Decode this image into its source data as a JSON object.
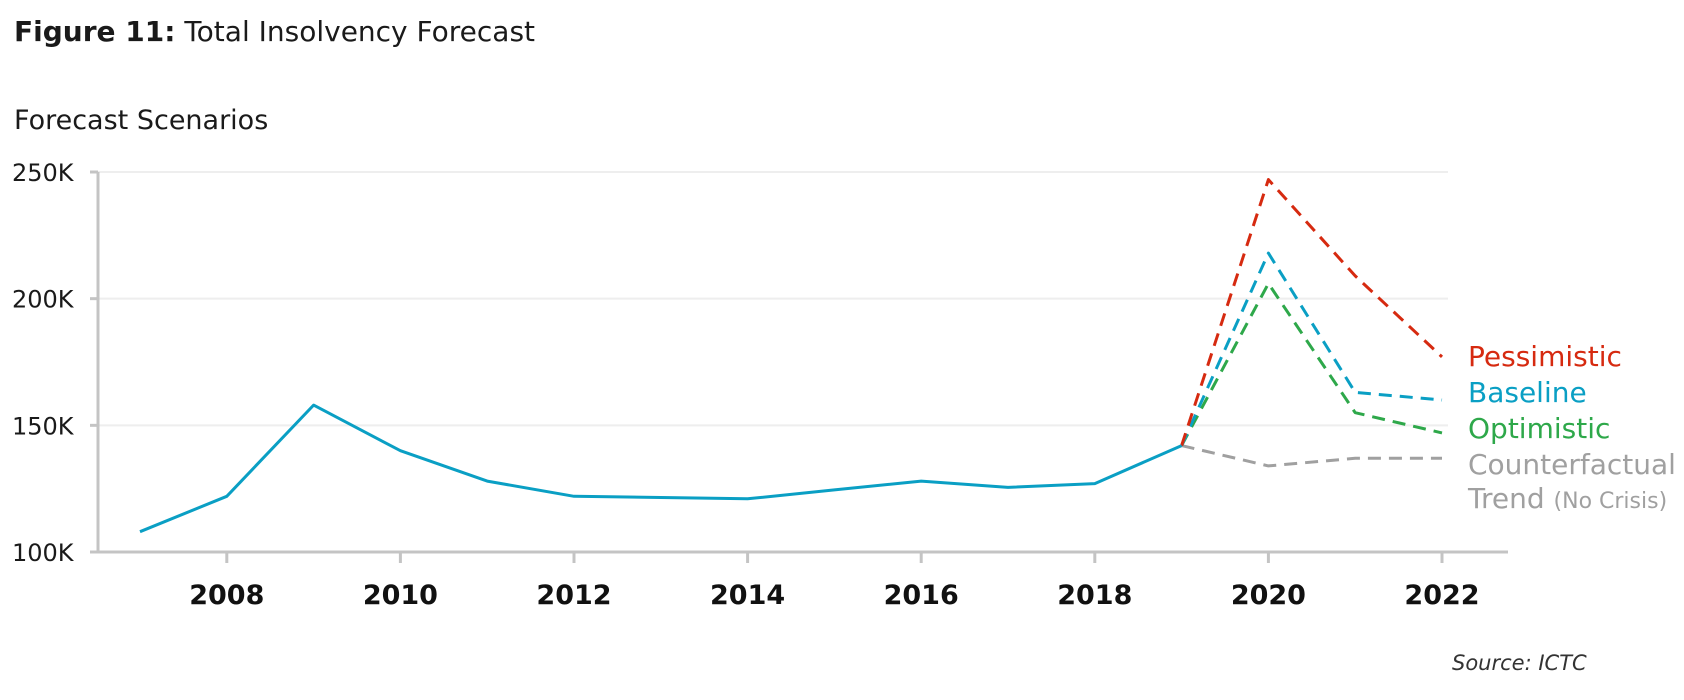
{
  "figure": {
    "label": "Figure 11:",
    "title": "Total Insolvency Forecast",
    "subtitle": "Forecast Scenarios",
    "source": "Source: ICTC"
  },
  "chart_data": {
    "type": "line",
    "title": "Total Insolvency Forecast",
    "subtitle": "Forecast Scenarios",
    "xlabel": "",
    "ylabel": "",
    "xlim": [
      2007,
      2022
    ],
    "ylim": [
      100000,
      250000
    ],
    "x_ticks": [
      2008,
      2010,
      2012,
      2014,
      2016,
      2018,
      2020,
      2022
    ],
    "x_tick_labels": [
      "2008",
      "2010",
      "2012",
      "2014",
      "2016",
      "2018",
      "2020",
      "2022"
    ],
    "y_ticks": [
      100000,
      150000,
      200000,
      250000
    ],
    "y_tick_labels": [
      "100K",
      "150K",
      "200K",
      "250K"
    ],
    "grid": "horizontal",
    "legend": "inline labels at right end of lines",
    "series": [
      {
        "name": "",
        "color": "#0a9fc4",
        "style": "solid",
        "x": [
          2007,
          2008,
          2009,
          2010,
          2011,
          2012,
          2013,
          2014,
          2015,
          2016,
          2017,
          2018,
          2019
        ],
        "y": [
          108000,
          122000,
          158000,
          140000,
          128000,
          122000,
          121500,
          121000,
          124500,
          128000,
          125500,
          127000,
          142000
        ]
      },
      {
        "name": "Pessimistic",
        "color": "#d62a10",
        "style": "dashed",
        "x": [
          2019,
          2020,
          2021,
          2022
        ],
        "y": [
          142000,
          247000,
          209000,
          177000
        ]
      },
      {
        "name": "Baseline",
        "color": "#0a9fc4",
        "style": "dashed",
        "x": [
          2019,
          2020,
          2021,
          2022
        ],
        "y": [
          142000,
          218000,
          163000,
          160000
        ]
      },
      {
        "name": "Optimistic",
        "color": "#2ea84a",
        "style": "dashed",
        "x": [
          2019,
          2020,
          2021,
          2022
        ],
        "y": [
          142000,
          206000,
          155000,
          147000
        ]
      },
      {
        "name": "Counterfactual Trend",
        "name_note": "(No Crisis)",
        "color": "#a0a0a0",
        "style": "dashed",
        "x": [
          2019,
          2020,
          2021,
          2022
        ],
        "y": [
          142000,
          134000,
          137000,
          137000
        ]
      }
    ]
  }
}
